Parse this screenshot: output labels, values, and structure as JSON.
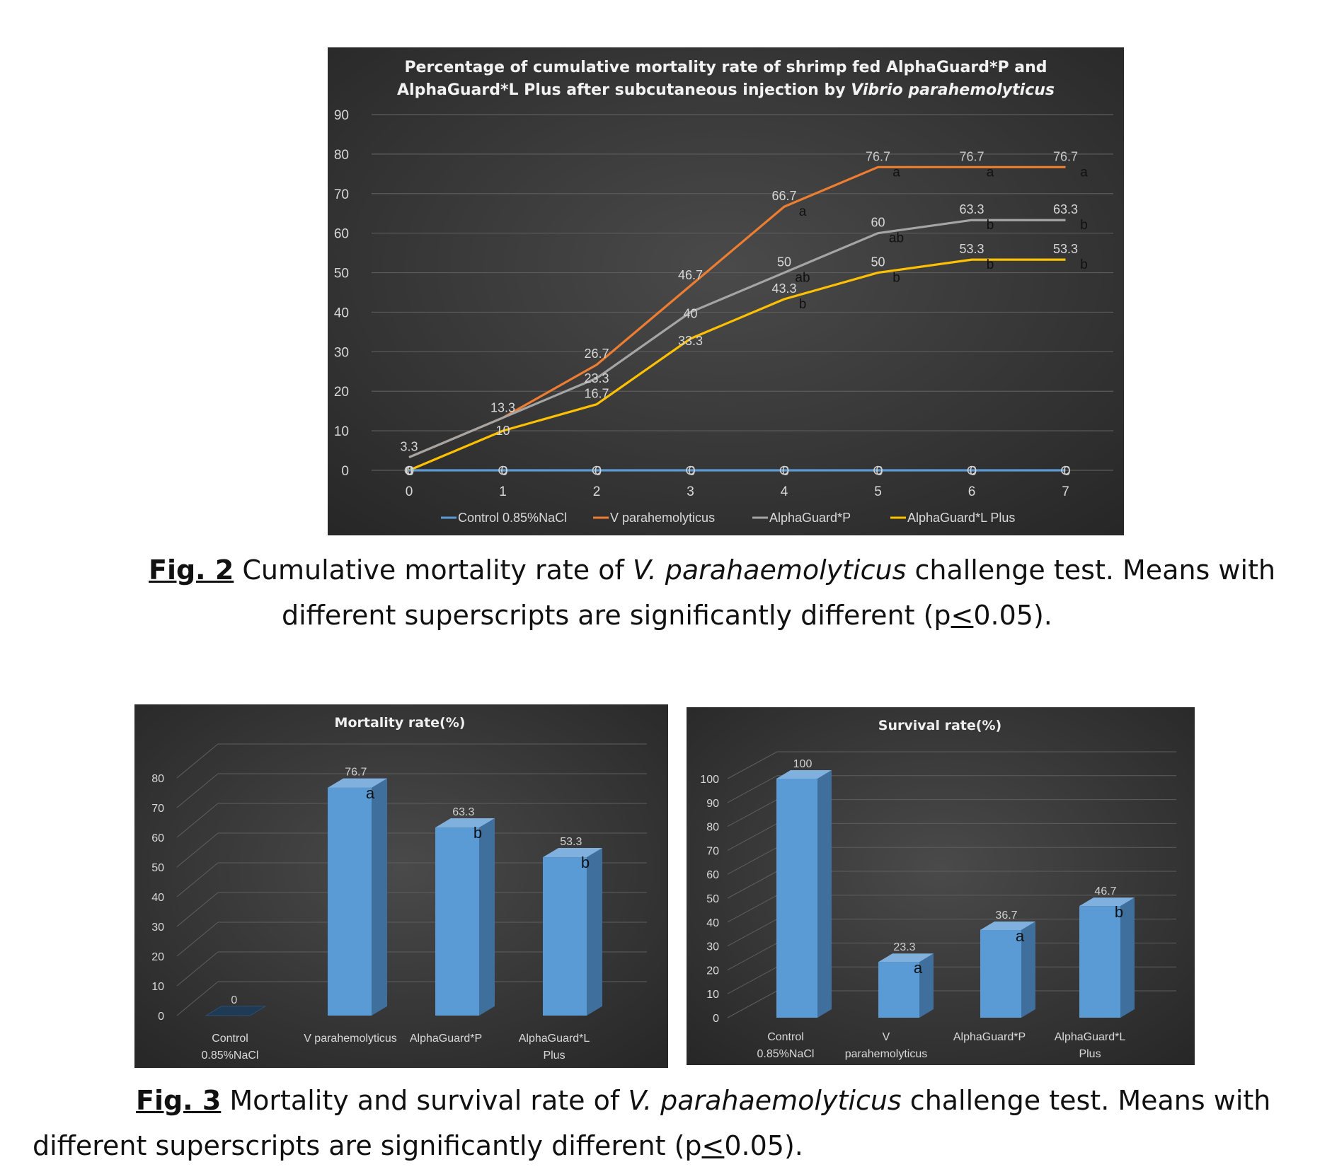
{
  "chart_data": [
    {
      "type": "line",
      "title_line1": "Percentage of cumulative mortality rate of shrimp fed AlphaGuard*P and",
      "title_line2_plain": "AlphaGuard*L Plus after subcutaneous injection by ",
      "title_line2_italic": "Vibrio parahemolyticus",
      "x": [
        0,
        1,
        2,
        3,
        4,
        5,
        6,
        7
      ],
      "ylim": [
        0,
        90
      ],
      "yticks": [
        0,
        10,
        20,
        30,
        40,
        50,
        60,
        70,
        80,
        90
      ],
      "legend_position": "bottom",
      "grid": true,
      "colors": {
        "background": "#3a3a3a",
        "control": "#5b9bd5",
        "vp": "#ed7d31",
        "apg": "#a5a5a5",
        "alp": "#ffc000"
      },
      "series": [
        {
          "name": "Control 0.85%NaCl",
          "values": [
            0,
            0,
            0,
            0,
            0,
            0,
            0,
            0
          ],
          "labels": [
            "0",
            "0",
            "0",
            "0",
            "0",
            "0",
            "0",
            "0"
          ]
        },
        {
          "name": "V parahemolyticus",
          "values": [
            3.3,
            13.3,
            26.7,
            46.7,
            66.7,
            76.7,
            76.7,
            76.7
          ],
          "labels": [
            "",
            "",
            "26.7",
            "46.7",
            "66.7",
            "76.7",
            "76.7",
            "76.7"
          ],
          "letters": [
            "",
            "",
            "",
            "",
            "a",
            "a",
            "a",
            "a"
          ]
        },
        {
          "name": "AlphaGuard*P",
          "values": [
            3.3,
            13.3,
            23.3,
            40,
            50,
            60,
            63.3,
            63.3
          ],
          "labels": [
            "3.3",
            "13.3",
            "23.3",
            "40",
            "50",
            "60",
            "63.3",
            "63.3"
          ],
          "letters": [
            "",
            "",
            "",
            "",
            "ab",
            "ab",
            "b",
            "b"
          ]
        },
        {
          "name": "AlphaGuard*L Plus",
          "values": [
            0,
            10,
            16.7,
            33.3,
            43.3,
            50,
            53.3,
            53.3
          ],
          "labels": [
            "0",
            "10",
            "16.7",
            "33.3",
            "43.3",
            "50",
            "53.3",
            "53.3"
          ],
          "letters": [
            "",
            "",
            "",
            "",
            "b",
            "b",
            "b",
            "b"
          ]
        }
      ]
    },
    {
      "type": "bar",
      "title": "Mortality rate(%)",
      "categories": [
        [
          "Control",
          "0.85%NaCl"
        ],
        [
          "V parahemolyticus"
        ],
        [
          "AlphaGuard*P"
        ],
        [
          "AlphaGuard*L",
          "Plus"
        ]
      ],
      "values": [
        0,
        76.7,
        63.3,
        53.3
      ],
      "labels": [
        "0",
        "76.7",
        "63.3",
        "53.3"
      ],
      "letters": [
        "",
        "a",
        "b",
        "b"
      ],
      "ylim": [
        0,
        80
      ],
      "yticks": [
        0,
        10,
        20,
        30,
        40,
        50,
        60,
        70,
        80
      ],
      "grid": true,
      "colors": {
        "bar": "#5b9bd5",
        "bar_side": "#3f6f9c",
        "bar_top": "#7fb0de",
        "background": "#3a3a3a"
      }
    },
    {
      "type": "bar",
      "title": "Survival rate(%)",
      "categories": [
        [
          "Control",
          "0.85%NaCl"
        ],
        [
          "V",
          "parahemolyticus"
        ],
        [
          "AlphaGuard*P"
        ],
        [
          "AlphaGuard*L",
          "Plus"
        ]
      ],
      "values": [
        100,
        23.3,
        36.7,
        46.7
      ],
      "labels": [
        "100",
        "23.3",
        "36.7",
        "46.7"
      ],
      "letters": [
        "",
        "a",
        "a",
        "b"
      ],
      "ylim": [
        0,
        100
      ],
      "yticks": [
        0,
        10,
        20,
        30,
        40,
        50,
        60,
        70,
        80,
        90,
        100
      ],
      "grid": true,
      "colors": {
        "bar": "#5b9bd5",
        "bar_side": "#3f6f9c",
        "bar_top": "#7fb0de",
        "background": "#3a3a3a"
      }
    }
  ],
  "captions": {
    "fig2": {
      "label": "Fig. 2",
      "text1": " Cumulative mortality rate of ",
      "species": "V. parahaemolyticus",
      "text2": " challenge test. Means with",
      "line2a": "different superscripts are significantly different (p",
      "line2_le": "<",
      "line2b": "0.05)."
    },
    "fig3": {
      "label": "Fig. 3",
      "text1": " Mortality and survival rate of ",
      "species": "V. parahaemolyticus",
      "text2": " challenge test. Means with",
      "line2a": "different superscripts are significantly different (p",
      "line2_le": "<",
      "line2b": "0.05)."
    }
  }
}
